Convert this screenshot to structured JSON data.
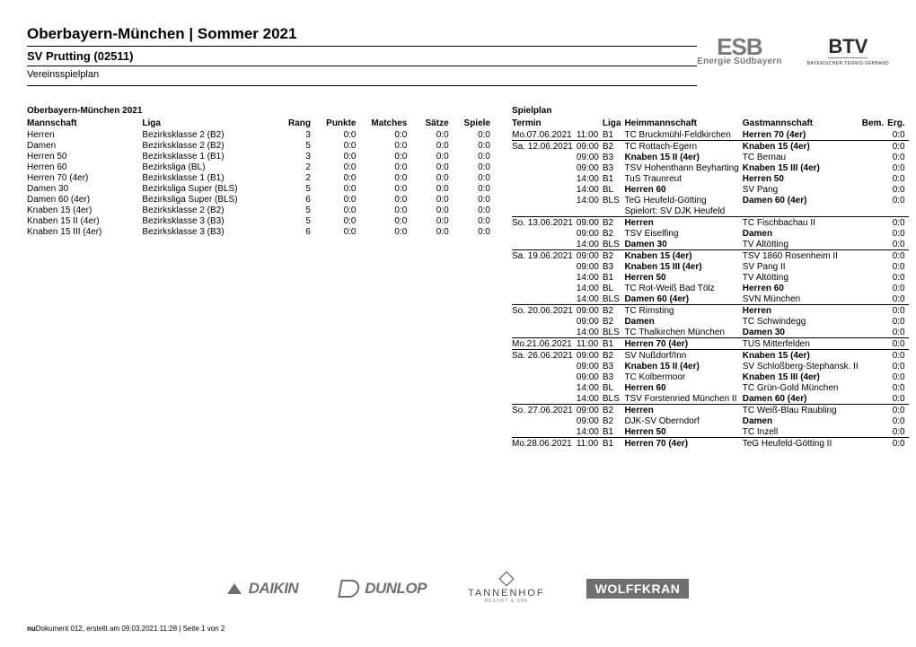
{
  "header": {
    "title": "Oberbayern-München | Sommer 2021",
    "club": "SV Prutting (02511)",
    "doctype": "Vereinsspielplan"
  },
  "standings": {
    "title": "Oberbayern-München 2021",
    "columns": [
      "Mannschaft",
      "Liga",
      "Rang",
      "Punkte",
      "Matches",
      "Sätze",
      "Spiele"
    ],
    "rows": [
      {
        "m": "Herren",
        "l": "Bezirksklasse 2 (B2)",
        "r": "3",
        "p": "0:0",
        "ma": "0:0",
        "s": "0:0",
        "sp": "0:0"
      },
      {
        "m": "Damen",
        "l": "Bezirksklasse 2 (B2)",
        "r": "5",
        "p": "0:0",
        "ma": "0:0",
        "s": "0:0",
        "sp": "0:0"
      },
      {
        "m": "Herren 50",
        "l": "Bezirksklasse 1 (B1)",
        "r": "3",
        "p": "0:0",
        "ma": "0:0",
        "s": "0:0",
        "sp": "0:0"
      },
      {
        "m": "Herren 60",
        "l": "Bezirksliga (BL)",
        "r": "2",
        "p": "0:0",
        "ma": "0:0",
        "s": "0:0",
        "sp": "0:0"
      },
      {
        "m": "Herren 70 (4er)",
        "l": "Bezirksklasse 1 (B1)",
        "r": "2",
        "p": "0:0",
        "ma": "0:0",
        "s": "0:0",
        "sp": "0:0"
      },
      {
        "m": "Damen 30",
        "l": "Bezirksliga Super (BLS)",
        "r": "5",
        "p": "0:0",
        "ma": "0:0",
        "s": "0:0",
        "sp": "0:0"
      },
      {
        "m": "Damen 60 (4er)",
        "l": "Bezirksliga Super (BLS)",
        "r": "6",
        "p": "0:0",
        "ma": "0:0",
        "s": "0:0",
        "sp": "0:0"
      },
      {
        "m": "Knaben 15 (4er)",
        "l": "Bezirksklasse 2 (B2)",
        "r": "5",
        "p": "0:0",
        "ma": "0:0",
        "s": "0:0",
        "sp": "0:0"
      },
      {
        "m": "Knaben 15 II (4er)",
        "l": "Bezirksklasse 3 (B3)",
        "r": "5",
        "p": "0:0",
        "ma": "0:0",
        "s": "0:0",
        "sp": "0:0"
      },
      {
        "m": "Knaben 15 III (4er)",
        "l": "Bezirksklasse 3 (B3)",
        "r": "6",
        "p": "0:0",
        "ma": "0:0",
        "s": "0:0",
        "sp": "0:0"
      }
    ]
  },
  "schedule": {
    "title": "Spielplan",
    "columns": [
      "Termin",
      "Liga",
      "Heimmannschaft",
      "Gastmannschaft",
      "Bem.",
      "Erg."
    ],
    "rows": [
      {
        "div": false,
        "d": "Mo.07.06.2021",
        "t": "11:00",
        "lg": "B1",
        "h": "TC Bruckmühl-Feldkirchen",
        "hb": false,
        "g": "Herren 70 (4er)",
        "gb": true,
        "e": "0:0"
      },
      {
        "div": true,
        "d": "Sa. 12.06.2021",
        "t": "09:00",
        "lg": "B2",
        "h": "TC Rottach-Egern",
        "hb": false,
        "g": "Knaben 15 (4er)",
        "gb": true,
        "e": "0:0"
      },
      {
        "div": false,
        "d": "",
        "t": "09:00",
        "lg": "B3",
        "h": "Knaben 15 II (4er)",
        "hb": true,
        "g": "TC Bernau",
        "gb": false,
        "e": "0:0"
      },
      {
        "div": false,
        "d": "",
        "t": "09:00",
        "lg": "B3",
        "h": "TSV Hohenthann Beyharting",
        "hb": false,
        "g": "Knaben 15 III (4er)",
        "gb": true,
        "e": "0:0"
      },
      {
        "div": false,
        "d": "",
        "t": "14:00",
        "lg": "B1",
        "h": "TuS Traunreut",
        "hb": false,
        "g": "Herren 50",
        "gb": true,
        "e": "0:0"
      },
      {
        "div": false,
        "d": "",
        "t": "14:00",
        "lg": "BL",
        "h": "Herren 60",
        "hb": true,
        "g": "SV Pang",
        "gb": false,
        "e": "0:0"
      },
      {
        "div": false,
        "d": "",
        "t": "14:00",
        "lg": "BLS",
        "h": "TeG Heufeld-Götting",
        "hb": false,
        "g": "Damen 60 (4er)",
        "gb": true,
        "e": "0:0"
      },
      {
        "div": false,
        "d": "",
        "t": "",
        "lg": "",
        "h": "Spielort: SV DJK Heufeld",
        "hb": false,
        "g": "",
        "gb": false,
        "e": ""
      },
      {
        "div": true,
        "d": "So. 13.06.2021",
        "t": "09:00",
        "lg": "B2",
        "h": "Herren",
        "hb": true,
        "g": "TC Fischbachau II",
        "gb": false,
        "e": "0:0"
      },
      {
        "div": false,
        "d": "",
        "t": "09:00",
        "lg": "B2",
        "h": "TSV Eiselfing",
        "hb": false,
        "g": "Damen",
        "gb": true,
        "e": "0:0"
      },
      {
        "div": false,
        "d": "",
        "t": "14:00",
        "lg": "BLS",
        "h": "Damen 30",
        "hb": true,
        "g": "TV Altötting",
        "gb": false,
        "e": "0:0"
      },
      {
        "div": true,
        "d": "Sa. 19.06.2021",
        "t": "09:00",
        "lg": "B2",
        "h": "Knaben 15 (4er)",
        "hb": true,
        "g": "TSV 1860 Rosenheim II",
        "gb": false,
        "e": "0:0"
      },
      {
        "div": false,
        "d": "",
        "t": "09:00",
        "lg": "B3",
        "h": "Knaben 15 III (4er)",
        "hb": true,
        "g": "SV Pang II",
        "gb": false,
        "e": "0:0"
      },
      {
        "div": false,
        "d": "",
        "t": "14:00",
        "lg": "B1",
        "h": "Herren 50",
        "hb": true,
        "g": "TV Altötting",
        "gb": false,
        "e": "0:0"
      },
      {
        "div": false,
        "d": "",
        "t": "14:00",
        "lg": "BL",
        "h": "TC Rot-Weiß Bad Tölz",
        "hb": false,
        "g": "Herren 60",
        "gb": true,
        "e": "0:0"
      },
      {
        "div": false,
        "d": "",
        "t": "14:00",
        "lg": "BLS",
        "h": "Damen 60 (4er)",
        "hb": true,
        "g": "SVN München",
        "gb": false,
        "e": "0:0"
      },
      {
        "div": true,
        "d": "So. 20.06.2021",
        "t": "09:00",
        "lg": "B2",
        "h": "TC Rimsting",
        "hb": false,
        "g": "Herren",
        "gb": true,
        "e": "0:0"
      },
      {
        "div": false,
        "d": "",
        "t": "09:00",
        "lg": "B2",
        "h": "Damen",
        "hb": true,
        "g": "TC Schwindegg",
        "gb": false,
        "e": "0:0"
      },
      {
        "div": false,
        "d": "",
        "t": "14:00",
        "lg": "BLS",
        "h": "TC Thalkirchen München",
        "hb": false,
        "g": "Damen 30",
        "gb": true,
        "e": "0:0"
      },
      {
        "div": true,
        "d": "Mo.21.06.2021",
        "t": "11:00",
        "lg": "B1",
        "h": "Herren 70 (4er)",
        "hb": true,
        "g": "TUS Mitterfelden",
        "gb": false,
        "e": "0:0"
      },
      {
        "div": true,
        "d": "Sa. 26.06.2021",
        "t": "09:00",
        "lg": "B2",
        "h": "SV Nußdorf/Inn",
        "hb": false,
        "g": "Knaben 15 (4er)",
        "gb": true,
        "e": "0:0"
      },
      {
        "div": false,
        "d": "",
        "t": "09:00",
        "lg": "B3",
        "h": "Knaben 15 II (4er)",
        "hb": true,
        "g": "SV Schloßberg-Stephansk. II",
        "gb": false,
        "e": "0:0"
      },
      {
        "div": false,
        "d": "",
        "t": "09:00",
        "lg": "B3",
        "h": "TC Kolbermoor",
        "hb": false,
        "g": "Knaben 15 III (4er)",
        "gb": true,
        "e": "0:0"
      },
      {
        "div": false,
        "d": "",
        "t": "14:00",
        "lg": "BL",
        "h": "Herren 60",
        "hb": true,
        "g": "TC Grün-Gold München",
        "gb": false,
        "e": "0:0"
      },
      {
        "div": false,
        "d": "",
        "t": "14:00",
        "lg": "BLS",
        "h": "TSV Forstenried München II",
        "hb": false,
        "g": "Damen 60 (4er)",
        "gb": true,
        "e": "0:0"
      },
      {
        "div": true,
        "d": "So. 27.06.2021",
        "t": "09:00",
        "lg": "B2",
        "h": "Herren",
        "hb": true,
        "g": "TC Weiß-Blau Raubling",
        "gb": false,
        "e": "0:0"
      },
      {
        "div": false,
        "d": "",
        "t": "09:00",
        "lg": "B2",
        "h": "DJK-SV Oberndorf",
        "hb": false,
        "g": "Damen",
        "gb": true,
        "e": "0:0"
      },
      {
        "div": false,
        "d": "",
        "t": "14:00",
        "lg": "B1",
        "h": "Herren 50",
        "hb": true,
        "g": "TC Inzell",
        "gb": false,
        "e": "0:0"
      },
      {
        "div": true,
        "d": "Mo.28.06.2021",
        "t": "11:00",
        "lg": "B1",
        "h": "Herren 70 (4er)",
        "hb": true,
        "g": "TeG Heufeld-Götting II",
        "gb": false,
        "e": "0:0"
      }
    ]
  },
  "sponsors": {
    "daikin": "DAIKIN",
    "dunlop": "DUNLOP",
    "tannenhof1": "TANNENHOF",
    "tannenhof2": "RESORT & SPA",
    "wolffkran": "WOLFFKRAN"
  },
  "footer": {
    "nu": "nu",
    "text": "Dokument 012, erstellt am 09.03.2021 11:28 | Seite 1 von 2"
  },
  "logos": {
    "esb_big": "ESB",
    "esb_small": "Energie Südbayern",
    "btv_big": "BTV",
    "btv_small": "BAYERISCHER TENNIS-VERBAND"
  }
}
